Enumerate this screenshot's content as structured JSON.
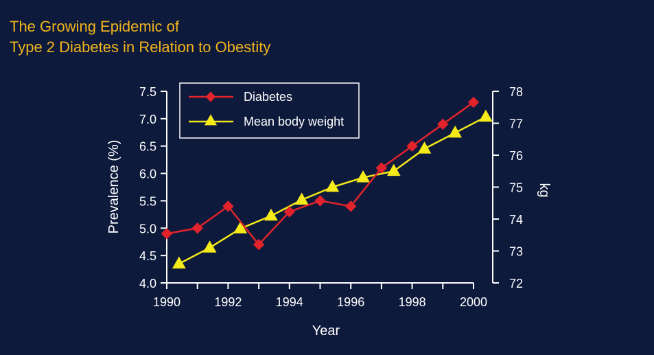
{
  "title_line1": "The Growing Epidemic of",
  "title_line2": "Type 2 Diabetes in Relation to Obestity",
  "colors": {
    "background": "#0e1a3c",
    "title": "#f2b51c",
    "diabetes": "#e3232b",
    "weight": "#f5ea1a",
    "axis": "#ffffff"
  },
  "chart_data": {
    "type": "line",
    "xlabel": "Year",
    "ylabel": "Prevalence (%)",
    "y2label": "kg",
    "xlim": [
      1990,
      2000
    ],
    "ylim": [
      4.0,
      7.5
    ],
    "y2lim": [
      72,
      78
    ],
    "x_ticks": [
      1990,
      1992,
      1994,
      1996,
      1998,
      2000
    ],
    "y_ticks": [
      "4.0",
      "4.5",
      "5.0",
      "5.5",
      "6.0",
      "6.5",
      "7.0",
      "7.5"
    ],
    "y2_ticks": [
      "72",
      "73",
      "74",
      "75",
      "76",
      "77",
      "78"
    ],
    "legend_position": "top-left",
    "series": [
      {
        "name": "Diabetes",
        "axis": "left",
        "marker": "diamond",
        "color": "#e3232b",
        "x": [
          1990,
          1991,
          1992,
          1993,
          1994,
          1995,
          1996,
          1997,
          1998,
          1999,
          2000
        ],
        "y": [
          4.9,
          5.0,
          5.4,
          4.7,
          5.3,
          5.5,
          5.4,
          6.1,
          6.5,
          6.9,
          7.3
        ]
      },
      {
        "name": "Mean body weight",
        "axis": "right",
        "marker": "triangle",
        "color": "#f5ea1a",
        "x": [
          1990.4,
          1991.4,
          1992.4,
          1993.4,
          1994.4,
          1995.4,
          1996.4,
          1997.4,
          1998.4,
          1999.4,
          2000.4
        ],
        "y": [
          72.6,
          73.1,
          73.7,
          74.1,
          74.6,
          75.0,
          75.3,
          75.5,
          76.2,
          76.7,
          77.2
        ]
      }
    ]
  }
}
